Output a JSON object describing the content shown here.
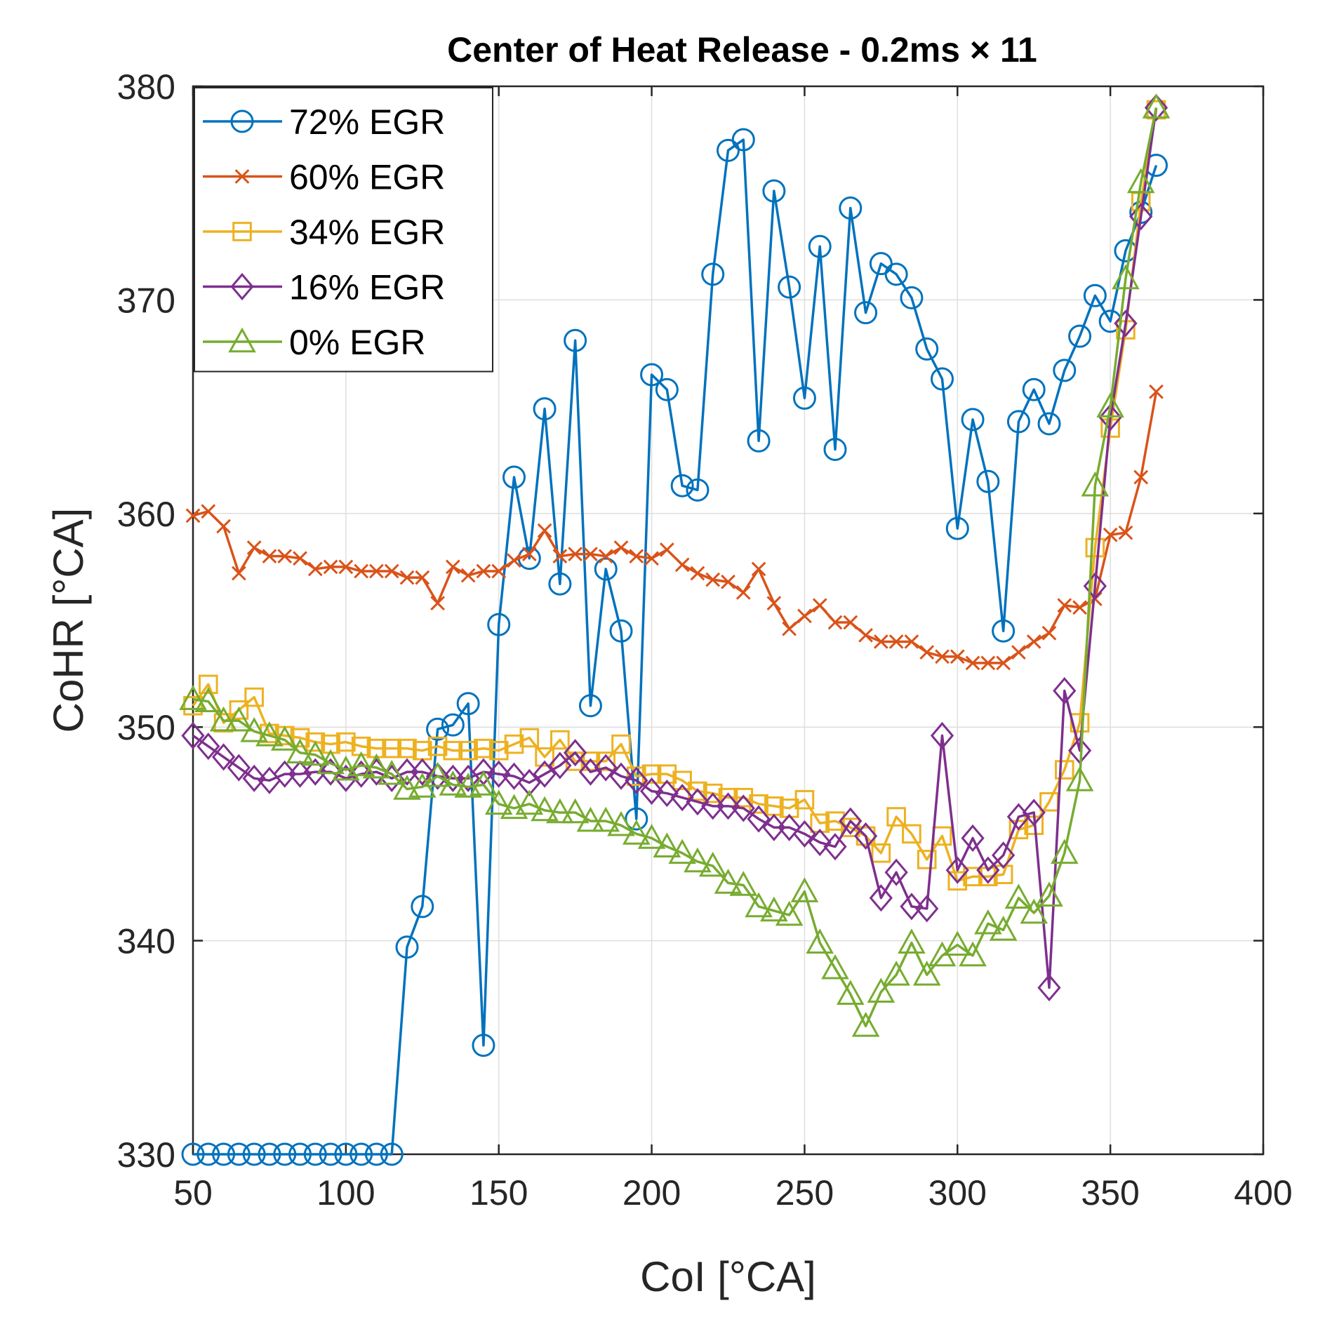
{
  "chart_data": {
    "type": "line",
    "title": "Center of Heat Release - 0.2ms × 11",
    "xlabel": "CoI [°CA]",
    "ylabel": "CoHR [°CA]",
    "xlim": [
      50,
      400
    ],
    "ylim": [
      330,
      380
    ],
    "xticks": [
      50,
      100,
      150,
      200,
      250,
      300,
      350,
      400
    ],
    "yticks": [
      330,
      340,
      350,
      360,
      370,
      380
    ],
    "grid": true,
    "legend_position": "top-left",
    "series": [
      {
        "name": "72% EGR",
        "color": "#0072BD",
        "marker": "circle",
        "x": [
          50,
          55,
          60,
          65,
          70,
          75,
          80,
          85,
          90,
          95,
          100,
          105,
          110,
          115,
          120,
          125,
          130,
          135,
          140,
          145,
          150,
          155,
          160,
          165,
          170,
          175,
          180,
          185,
          190,
          195,
          200,
          205,
          210,
          215,
          220,
          225,
          230,
          235,
          240,
          245,
          250,
          255,
          260,
          265,
          270,
          275,
          280,
          285,
          290,
          295,
          300,
          305,
          310,
          315,
          320,
          325,
          330,
          335,
          340,
          345,
          350,
          355,
          360,
          365
        ],
        "y": [
          330,
          330,
          330,
          330,
          330,
          330,
          330,
          330,
          330,
          330,
          330,
          330,
          330,
          330,
          339.7,
          341.6,
          349.9,
          350.1,
          351.1,
          335.1,
          354.8,
          361.7,
          357.9,
          364.9,
          356.7,
          368.1,
          351.0,
          357.4,
          354.5,
          345.7,
          366.5,
          365.8,
          361.3,
          361.1,
          371.2,
          377.0,
          377.5,
          363.4,
          375.1,
          370.6,
          365.4,
          372.5,
          363.0,
          374.3,
          369.4,
          371.7,
          371.2,
          370.1,
          367.7,
          366.3,
          359.3,
          364.4,
          361.5,
          354.5,
          364.3,
          365.8,
          364.2,
          366.7,
          368.3,
          370.2,
          369.0,
          372.3,
          374.1,
          376.3
        ]
      },
      {
        "name": "60% EGR",
        "color": "#D95319",
        "marker": "x",
        "x": [
          50,
          55,
          60,
          65,
          70,
          75,
          80,
          85,
          90,
          95,
          100,
          105,
          110,
          115,
          120,
          125,
          130,
          135,
          140,
          145,
          150,
          155,
          160,
          165,
          170,
          175,
          180,
          185,
          190,
          195,
          200,
          205,
          210,
          215,
          220,
          225,
          230,
          235,
          240,
          245,
          250,
          255,
          260,
          265,
          270,
          275,
          280,
          285,
          290,
          295,
          300,
          305,
          310,
          315,
          320,
          325,
          330,
          335,
          340,
          345,
          350,
          355,
          360,
          365
        ],
        "y": [
          359.9,
          360.1,
          359.4,
          357.2,
          358.4,
          358.0,
          358.0,
          357.9,
          357.4,
          357.5,
          357.5,
          357.3,
          357.3,
          357.3,
          357.0,
          357.0,
          355.8,
          357.5,
          357.1,
          357.3,
          357.3,
          357.8,
          358.1,
          359.2,
          358.0,
          358.1,
          358.1,
          358.0,
          358.4,
          358.0,
          357.9,
          358.3,
          357.6,
          357.2,
          356.9,
          356.8,
          356.3,
          357.4,
          355.8,
          354.6,
          355.2,
          355.7,
          354.9,
          354.9,
          354.3,
          354.0,
          354.0,
          354.0,
          353.5,
          353.3,
          353.3,
          353.0,
          353.0,
          353.0,
          353.5,
          354.0,
          354.4,
          355.7,
          355.6,
          356.0,
          359.0,
          359.1,
          361.7,
          365.7
        ]
      },
      {
        "name": "34% EGR",
        "color": "#EDB120",
        "marker": "square",
        "x": [
          50,
          55,
          60,
          65,
          70,
          75,
          80,
          85,
          90,
          95,
          100,
          105,
          110,
          115,
          120,
          125,
          130,
          135,
          140,
          145,
          150,
          155,
          160,
          165,
          170,
          175,
          180,
          185,
          190,
          195,
          200,
          205,
          210,
          215,
          220,
          225,
          230,
          235,
          240,
          245,
          250,
          255,
          260,
          265,
          270,
          275,
          280,
          285,
          290,
          295,
          300,
          305,
          310,
          315,
          320,
          325,
          330,
          335,
          340,
          345,
          350,
          355,
          360,
          365
        ],
        "y": [
          351.0,
          352.0,
          350.2,
          350.8,
          351.4,
          349.7,
          349.6,
          349.5,
          349.3,
          349.2,
          349.3,
          349.1,
          349.0,
          349.0,
          349.0,
          348.9,
          349.1,
          348.9,
          348.9,
          349.0,
          348.9,
          349.2,
          349.5,
          348.6,
          349.4,
          348.4,
          348.4,
          348.4,
          349.2,
          347.7,
          347.8,
          347.8,
          347.5,
          347.0,
          346.9,
          346.7,
          346.7,
          346.4,
          346.3,
          346.2,
          346.6,
          345.5,
          345.6,
          345.3,
          344.9,
          344.1,
          345.8,
          345.0,
          343.8,
          344.9,
          342.8,
          343.0,
          343.0,
          343.1,
          345.2,
          345.4,
          346.5,
          348.0,
          350.2,
          358.4,
          364.0,
          368.6,
          374.6,
          378.9
        ]
      },
      {
        "name": "16% EGR",
        "color": "#7E2F8E",
        "marker": "diamond",
        "x": [
          50,
          55,
          60,
          65,
          70,
          75,
          80,
          85,
          90,
          95,
          100,
          105,
          110,
          115,
          120,
          125,
          130,
          135,
          140,
          145,
          150,
          155,
          160,
          165,
          170,
          175,
          180,
          185,
          190,
          195,
          200,
          205,
          210,
          215,
          220,
          225,
          230,
          235,
          240,
          245,
          250,
          255,
          260,
          265,
          270,
          275,
          280,
          285,
          290,
          295,
          300,
          305,
          310,
          315,
          320,
          325,
          330,
          335,
          340,
          345,
          350,
          355,
          360,
          365
        ],
        "y": [
          349.6,
          349.1,
          348.6,
          348.1,
          347.6,
          347.5,
          347.8,
          347.8,
          347.9,
          347.9,
          347.6,
          347.8,
          347.9,
          347.6,
          347.9,
          347.9,
          347.7,
          347.6,
          347.6,
          347.9,
          347.8,
          347.7,
          347.4,
          347.8,
          348.2,
          348.8,
          347.9,
          348.1,
          347.7,
          347.5,
          347.0,
          346.9,
          346.7,
          346.5,
          346.3,
          346.3,
          346.2,
          345.7,
          345.3,
          345.3,
          345.0,
          344.6,
          344.4,
          345.6,
          344.9,
          342.0,
          343.2,
          341.6,
          341.5,
          349.6,
          343.3,
          344.8,
          343.3,
          344.0,
          345.8,
          346.0,
          337.8,
          351.7,
          348.9,
          356.6,
          364.5,
          368.9,
          373.9,
          379.0
        ]
      },
      {
        "name": "0% EGR",
        "color": "#77AC30",
        "marker": "triangle",
        "x": [
          50,
          55,
          60,
          65,
          70,
          75,
          80,
          85,
          90,
          95,
          100,
          105,
          110,
          115,
          120,
          125,
          130,
          135,
          140,
          145,
          150,
          155,
          160,
          165,
          170,
          175,
          180,
          185,
          190,
          195,
          200,
          205,
          210,
          215,
          220,
          225,
          230,
          235,
          240,
          245,
          250,
          255,
          260,
          265,
          270,
          275,
          280,
          285,
          290,
          295,
          300,
          305,
          310,
          315,
          320,
          325,
          330,
          335,
          340,
          345,
          350,
          355,
          360,
          365
        ],
        "y": [
          351.3,
          351.2,
          350.3,
          350.3,
          349.8,
          349.6,
          349.4,
          348.8,
          348.7,
          348.3,
          348.0,
          348.2,
          348.1,
          347.8,
          347.1,
          347.2,
          347.7,
          347.3,
          347.2,
          347.3,
          346.4,
          346.2,
          346.4,
          346.1,
          346.0,
          346.0,
          345.6,
          345.6,
          345.4,
          345.0,
          344.8,
          344.4,
          344.1,
          343.7,
          343.5,
          342.7,
          342.6,
          341.6,
          341.4,
          341.2,
          342.3,
          339.9,
          338.7,
          337.5,
          336.0,
          337.6,
          338.4,
          339.9,
          338.4,
          339.3,
          339.8,
          339.3,
          340.8,
          340.5,
          342.0,
          341.3,
          342.1,
          344.1,
          347.5,
          361.3,
          365.0,
          371.0,
          375.5,
          379.0
        ]
      }
    ]
  }
}
